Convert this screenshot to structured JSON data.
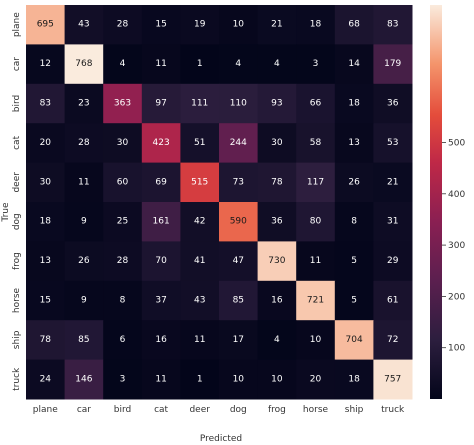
{
  "chart_data": {
    "type": "heatmap",
    "title": "",
    "xlabel": "Predicted",
    "ylabel": "True",
    "categories": [
      "plane",
      "car",
      "bird",
      "cat",
      "deer",
      "dog",
      "frog",
      "horse",
      "ship",
      "truck"
    ],
    "matrix": [
      [
        695,
        43,
        28,
        15,
        19,
        10,
        21,
        18,
        68,
        83
      ],
      [
        12,
        768,
        4,
        11,
        1,
        4,
        4,
        3,
        14,
        179
      ],
      [
        83,
        23,
        363,
        97,
        111,
        110,
        93,
        66,
        18,
        36
      ],
      [
        20,
        28,
        30,
        423,
        51,
        244,
        30,
        58,
        13,
        53
      ],
      [
        30,
        11,
        60,
        69,
        515,
        73,
        78,
        117,
        26,
        21
      ],
      [
        18,
        9,
        25,
        161,
        42,
        590,
        36,
        80,
        8,
        31
      ],
      [
        13,
        26,
        28,
        70,
        41,
        47,
        730,
        11,
        5,
        29
      ],
      [
        15,
        9,
        8,
        37,
        43,
        85,
        16,
        721,
        5,
        61
      ],
      [
        78,
        85,
        6,
        16,
        11,
        17,
        4,
        10,
        704,
        72
      ],
      [
        24,
        146,
        3,
        11,
        1,
        10,
        10,
        20,
        18,
        757
      ]
    ],
    "colorbar": {
      "ticks": [
        "100",
        "200",
        "300",
        "400",
        "500"
      ],
      "tick_values": [
        100,
        200,
        300,
        400,
        500
      ],
      "vmin": 0,
      "vmax": 768
    },
    "colors": {
      "low": "#03051a",
      "high": "#faebdd",
      "text_dark": "#1a1a1a",
      "text_light": "#ffffff"
    }
  }
}
